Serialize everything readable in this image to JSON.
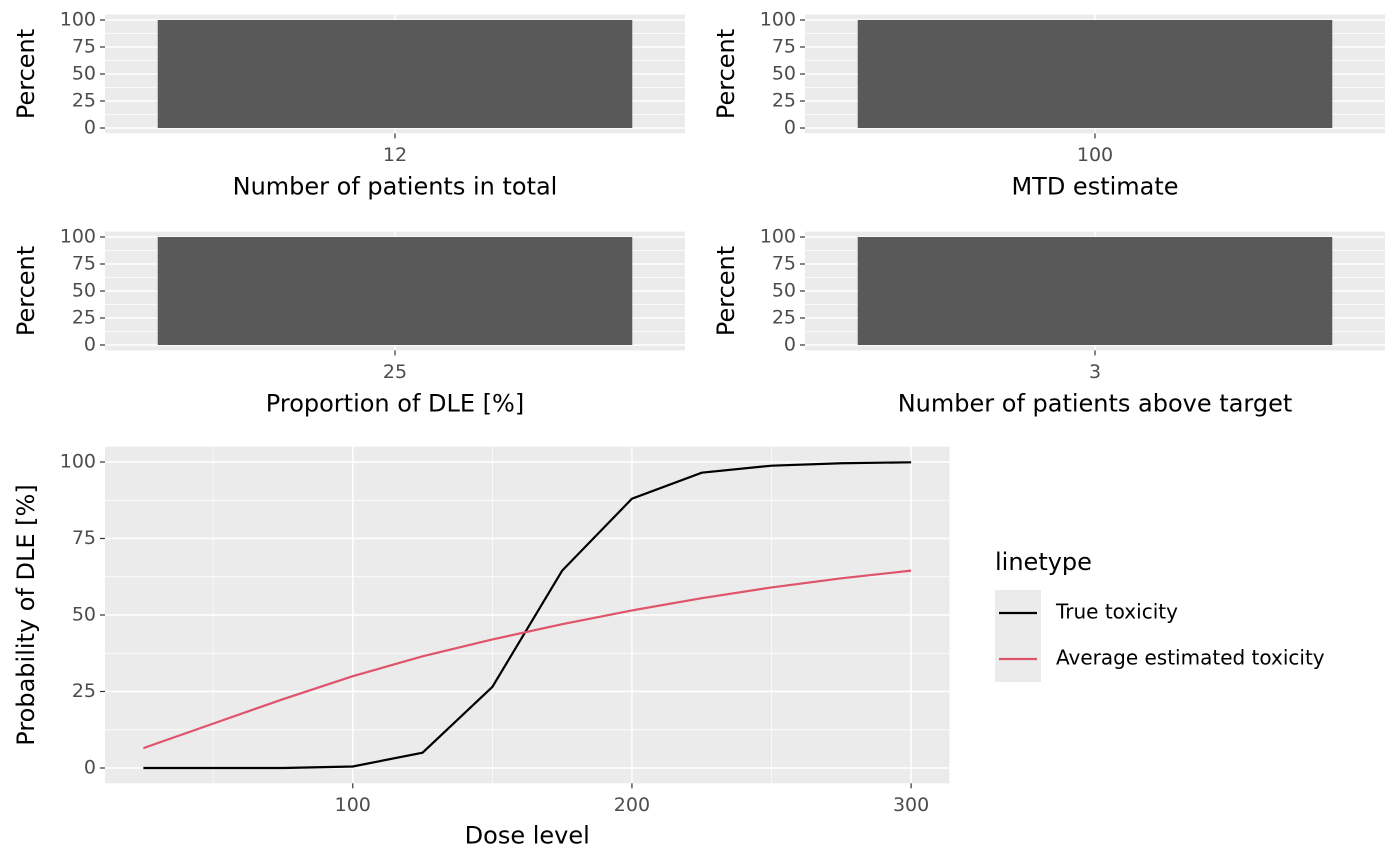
{
  "chart_data": [
    {
      "type": "bar",
      "categories": [
        "12"
      ],
      "values": [
        100
      ],
      "ylim": [
        -5,
        105
      ],
      "yticks": [
        0,
        25,
        50,
        75,
        100
      ],
      "xlabel": "Number of patients in total",
      "ylabel": "Percent",
      "color": "#595959",
      "grid": true
    },
    {
      "type": "bar",
      "categories": [
        "100"
      ],
      "values": [
        100
      ],
      "ylim": [
        -5,
        105
      ],
      "yticks": [
        0,
        25,
        50,
        75,
        100
      ],
      "xlabel": "MTD estimate",
      "ylabel": "Percent",
      "color": "#595959",
      "grid": true
    },
    {
      "type": "bar",
      "categories": [
        "25"
      ],
      "values": [
        100
      ],
      "ylim": [
        -5,
        105
      ],
      "yticks": [
        0,
        25,
        50,
        75,
        100
      ],
      "xlabel": "Proportion of DLE [%]",
      "ylabel": "Percent",
      "color": "#595959",
      "grid": true
    },
    {
      "type": "bar",
      "categories": [
        "3"
      ],
      "values": [
        100
      ],
      "ylim": [
        -5,
        105
      ],
      "yticks": [
        0,
        25,
        50,
        75,
        100
      ],
      "xlabel": "Number of patients above target",
      "ylabel": "Percent",
      "color": "#595959",
      "grid": true
    },
    {
      "type": "line",
      "x": [
        25,
        50,
        75,
        100,
        125,
        150,
        175,
        200,
        225,
        250,
        275,
        300
      ],
      "series": [
        {
          "name": "True toxicity",
          "color": "#000000",
          "values": [
            0,
            0,
            0,
            0.5,
            5,
            26.5,
            64.5,
            88,
            96.5,
            98.8,
            99.6,
            99.9
          ]
        },
        {
          "name": "Average estimated toxicity",
          "color": "#DF536B",
          "values": [
            6.5,
            14.5,
            22.5,
            30,
            36.5,
            42,
            47,
            51.5,
            55.5,
            59,
            62,
            64.5
          ]
        }
      ],
      "xlim": [
        11.25,
        313.75
      ],
      "xticks": [
        100,
        200,
        300
      ],
      "ylim": [
        -5,
        105
      ],
      "yticks": [
        0,
        25,
        50,
        75,
        100
      ],
      "xlabel": "Dose level",
      "ylabel": "Probability of DLE [%]",
      "legend_title": "linetype",
      "legend": "right",
      "grid": true
    }
  ]
}
